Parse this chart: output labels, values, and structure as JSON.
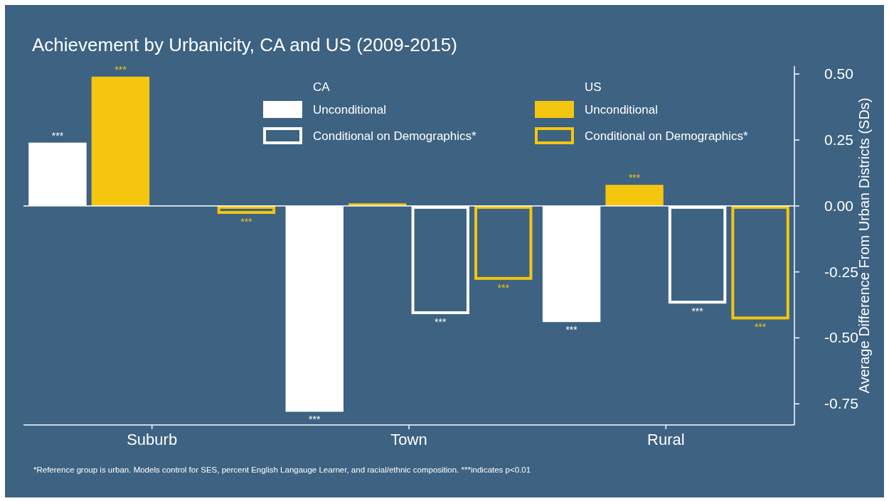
{
  "chart_data": {
    "type": "bar",
    "title": "Achievement by Urbanicity, CA and US (2009-2015)",
    "ylabel": "Average Difference From Urban Districts (SDs)",
    "categories": [
      "Suburb",
      "Town",
      "Rural"
    ],
    "series": [
      {
        "name": "Unconditional",
        "color": "#ffffff",
        "values": [
          0.24,
          -0.78,
          -0.44
        ],
        "value_labels": [
          "***",
          "***",
          "***"
        ]
      },
      {
        "name": "Unconditional",
        "color": "#f5c60f",
        "values": [
          0.49,
          0.01,
          0.08
        ],
        "value_labels": [
          "***",
          null,
          "***"
        ]
      },
      {
        "name": "Conditional on Demographics*",
        "color": "#ffffff",
        "line_style": "solid",
        "values": [
          null,
          -0.41,
          -0.37
        ],
        "value_labels": [
          null,
          "***",
          "***"
        ]
      },
      {
        "name": "Conditional on Demographics*",
        "color": "#f5c60f",
        "line_style": "solid",
        "values": [
          -0.03,
          -0.28,
          -0.43
        ],
        "value_labels": [
          "***",
          "***",
          "***"
        ]
      }
    ],
    "ylim": [
      -0.83,
      0.53
    ],
    "yticks": [
      {
        "value": 0.5,
        "label": "0.50"
      },
      {
        "value": 0.25,
        "label": "0.25"
      },
      {
        "value": 0,
        "label": "0.00"
      },
      {
        "value": -0.25,
        "label": "-0.25"
      },
      {
        "value": -0.5,
        "label": "-0.50"
      },
      {
        "value": -0.75,
        "label": "-0.75"
      }
    ],
    "ref_lines": [
      {
        "axis": "y",
        "value": 0,
        "color": "#ffffff"
      }
    ],
    "legend": "top",
    "annotations": [
      "CA",
      "US",
      "*Reference group is urban. Models control for SES, percent English Langauge Learner, and racial/ethnic composition. ***indicates p<0.01"
    ]
  }
}
